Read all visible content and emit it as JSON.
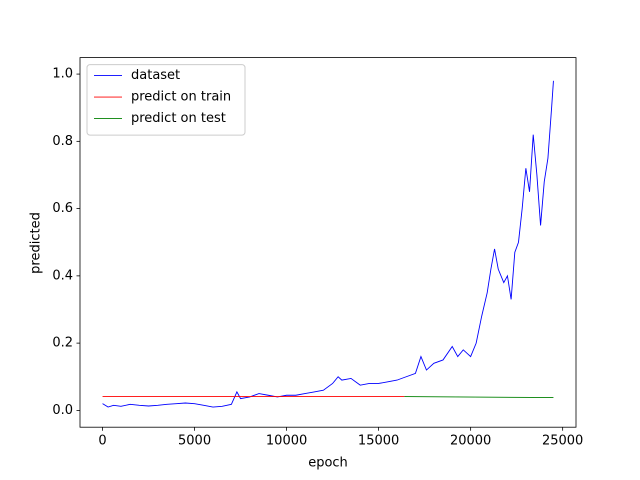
{
  "chart_data": {
    "type": "line",
    "xlabel": "epoch",
    "ylabel": "predicted",
    "xlim": [
      -1225,
      25725
    ],
    "ylim": [
      -0.05,
      1.049
    ],
    "xticks": [
      0,
      5000,
      10000,
      15000,
      20000,
      25000
    ],
    "yticks": [
      {
        "value": 0,
        "label": "0.0"
      },
      0.2,
      0.4,
      0.6,
      0.8,
      {
        "value": 1,
        "label": "1.0"
      }
    ],
    "legend": "upper left",
    "series": [
      {
        "name": "dataset",
        "color": "#0000ff",
        "x": [
          0,
          300,
          600,
          1000,
          1500,
          2000,
          2500,
          3000,
          3500,
          4000,
          4500,
          5000,
          5500,
          6000,
          6500,
          7000,
          7300,
          7500,
          8000,
          8500,
          9000,
          9500,
          10000,
          10500,
          11000,
          11500,
          12000,
          12500,
          12800,
          13000,
          13500,
          14000,
          14500,
          15000,
          15500,
          16000,
          16500,
          17000,
          17300,
          17600,
          18000,
          18500,
          19000,
          19300,
          19600,
          20000,
          20300,
          20600,
          20900,
          21100,
          21300,
          21500,
          21800,
          22000,
          22200,
          22400,
          22600,
          22800,
          23000,
          23200,
          23400,
          23600,
          23800,
          24000,
          24200,
          24400,
          24500
        ],
        "values": [
          0.02,
          0.01,
          0.015,
          0.012,
          0.018,
          0.015,
          0.013,
          0.015,
          0.018,
          0.02,
          0.022,
          0.02,
          0.015,
          0.01,
          0.012,
          0.018,
          0.055,
          0.035,
          0.04,
          0.05,
          0.045,
          0.04,
          0.045,
          0.045,
          0.05,
          0.055,
          0.06,
          0.08,
          0.1,
          0.09,
          0.095,
          0.075,
          0.08,
          0.08,
          0.085,
          0.09,
          0.1,
          0.11,
          0.16,
          0.12,
          0.14,
          0.15,
          0.19,
          0.16,
          0.18,
          0.16,
          0.2,
          0.28,
          0.35,
          0.42,
          0.48,
          0.42,
          0.38,
          0.4,
          0.33,
          0.47,
          0.5,
          0.6,
          0.72,
          0.65,
          0.82,
          0.7,
          0.55,
          0.68,
          0.75,
          0.9,
          0.98
        ]
      },
      {
        "name": "predict on train",
        "color": "#ff0000",
        "x": [
          0,
          16400
        ],
        "values": [
          0.041,
          0.041
        ]
      },
      {
        "name": "predict on test",
        "color": "#008000",
        "x": [
          16400,
          24500
        ],
        "values": [
          0.041,
          0.038
        ]
      }
    ]
  }
}
